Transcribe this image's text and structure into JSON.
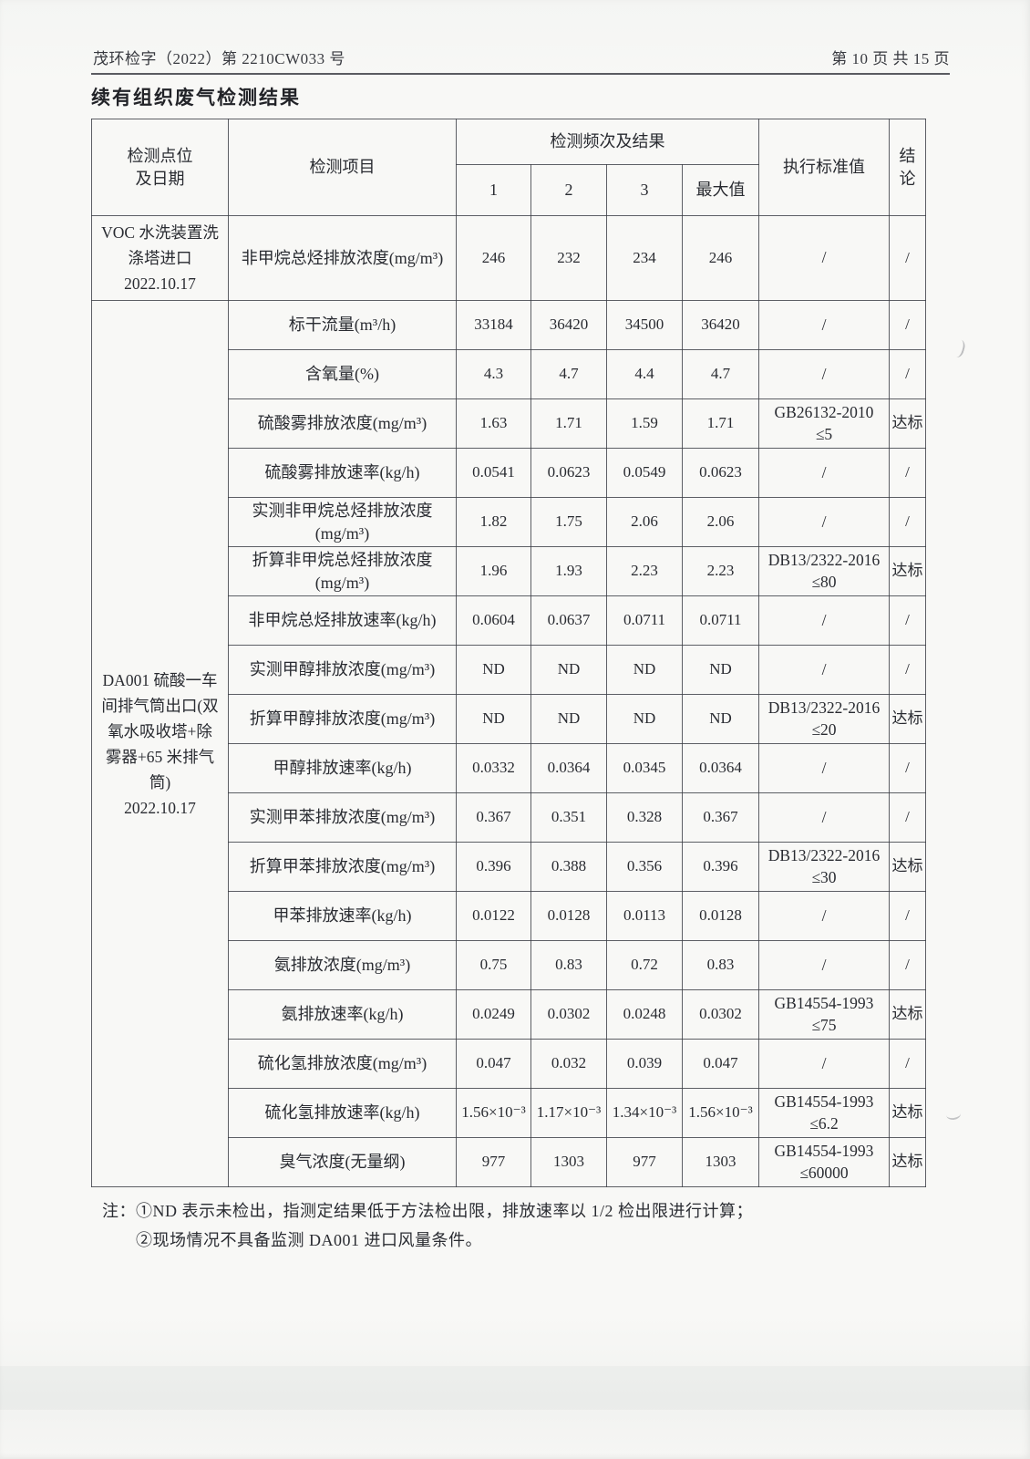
{
  "page": {
    "doc_number": "茂环检字（2022）第 2210CW033 号",
    "page_indicator": "第 10 页 共 15 页",
    "section_title": "续有组织废气检测结果"
  },
  "table": {
    "headers": {
      "point": "检测点位\n及日期",
      "item": "检测项目",
      "freq_results": "检测频次及结果",
      "freq_cols": [
        "1",
        "2",
        "3",
        "最大值"
      ],
      "standard": "执行标准值",
      "conclusion": "结论"
    },
    "point_groups": [
      {
        "label": "VOC 水洗装置洗\n涤塔进口\n2022.10.17",
        "rows": 1
      },
      {
        "label": "DA001 硫酸一车\n间排气筒出口(双\n氧水吸收塔+除\n雾器+65 米排气\n筒)\n2022.10.17",
        "rows": 18
      }
    ],
    "rows": [
      {
        "item": "非甲烷总烃排放浓度(mg/m³)",
        "v1": "246",
        "v2": "232",
        "v3": "234",
        "max": "246",
        "standard": "/",
        "conclusion": "/"
      },
      {
        "item": "标干流量(m³/h)",
        "v1": "33184",
        "v2": "36420",
        "v3": "34500",
        "max": "36420",
        "standard": "/",
        "conclusion": "/"
      },
      {
        "item": "含氧量(%)",
        "v1": "4.3",
        "v2": "4.7",
        "v3": "4.4",
        "max": "4.7",
        "standard": "/",
        "conclusion": "/"
      },
      {
        "item": "硫酸雾排放浓度(mg/m³)",
        "v1": "1.63",
        "v2": "1.71",
        "v3": "1.59",
        "max": "1.71",
        "standard": "GB26132-2010\n≤5",
        "conclusion": "达标"
      },
      {
        "item": "硫酸雾排放速率(kg/h)",
        "v1": "0.0541",
        "v2": "0.0623",
        "v3": "0.0549",
        "max": "0.0623",
        "standard": "/",
        "conclusion": "/"
      },
      {
        "item": "实测非甲烷总烃排放浓度\n(mg/m³)",
        "v1": "1.82",
        "v2": "1.75",
        "v3": "2.06",
        "max": "2.06",
        "standard": "/",
        "conclusion": "/"
      },
      {
        "item": "折算非甲烷总烃排放浓度\n(mg/m³)",
        "v1": "1.96",
        "v2": "1.93",
        "v3": "2.23",
        "max": "2.23",
        "standard": "DB13/2322-2016\n≤80",
        "conclusion": "达标"
      },
      {
        "item": "非甲烷总烃排放速率(kg/h)",
        "v1": "0.0604",
        "v2": "0.0637",
        "v3": "0.0711",
        "max": "0.0711",
        "standard": "/",
        "conclusion": "/"
      },
      {
        "item": "实测甲醇排放浓度(mg/m³)",
        "v1": "ND",
        "v2": "ND",
        "v3": "ND",
        "max": "ND",
        "standard": "/",
        "conclusion": "/"
      },
      {
        "item": "折算甲醇排放浓度(mg/m³)",
        "v1": "ND",
        "v2": "ND",
        "v3": "ND",
        "max": "ND",
        "standard": "DB13/2322-2016\n≤20",
        "conclusion": "达标"
      },
      {
        "item": "甲醇排放速率(kg/h)",
        "v1": "0.0332",
        "v2": "0.0364",
        "v3": "0.0345",
        "max": "0.0364",
        "standard": "/",
        "conclusion": "/"
      },
      {
        "item": "实测甲苯排放浓度(mg/m³)",
        "v1": "0.367",
        "v2": "0.351",
        "v3": "0.328",
        "max": "0.367",
        "standard": "/",
        "conclusion": "/"
      },
      {
        "item": "折算甲苯排放浓度(mg/m³)",
        "v1": "0.396",
        "v2": "0.388",
        "v3": "0.356",
        "max": "0.396",
        "standard": "DB13/2322-2016\n≤30",
        "conclusion": "达标"
      },
      {
        "item": "甲苯排放速率(kg/h)",
        "v1": "0.0122",
        "v2": "0.0128",
        "v3": "0.0113",
        "max": "0.0128",
        "standard": "/",
        "conclusion": "/"
      },
      {
        "item": "氨排放浓度(mg/m³)",
        "v1": "0.75",
        "v2": "0.83",
        "v3": "0.72",
        "max": "0.83",
        "standard": "/",
        "conclusion": "/"
      },
      {
        "item": "氨排放速率(kg/h)",
        "v1": "0.0249",
        "v2": "0.0302",
        "v3": "0.0248",
        "max": "0.0302",
        "standard": "GB14554-1993\n≤75",
        "conclusion": "达标"
      },
      {
        "item": "硫化氢排放浓度(mg/m³)",
        "v1": "0.047",
        "v2": "0.032",
        "v3": "0.039",
        "max": "0.047",
        "standard": "/",
        "conclusion": "/"
      },
      {
        "item": "硫化氢排放速率(kg/h)",
        "v1": "1.56×10⁻³",
        "v2": "1.17×10⁻³",
        "v3": "1.34×10⁻³",
        "max": "1.56×10⁻³",
        "standard": "GB14554-1993\n≤6.2",
        "conclusion": "达标"
      },
      {
        "item": "臭气浓度(无量纲)",
        "v1": "977",
        "v2": "1303",
        "v3": "977",
        "max": "1303",
        "standard": "GB14554-1993\n≤60000",
        "conclusion": "达标"
      }
    ]
  },
  "notes": [
    "注：①ND 表示未检出，指测定结果低于方法检出限，排放速率以 1/2 检出限进行计算；",
    "②现场情况不具备监测 DA001 进口风量条件。"
  ]
}
